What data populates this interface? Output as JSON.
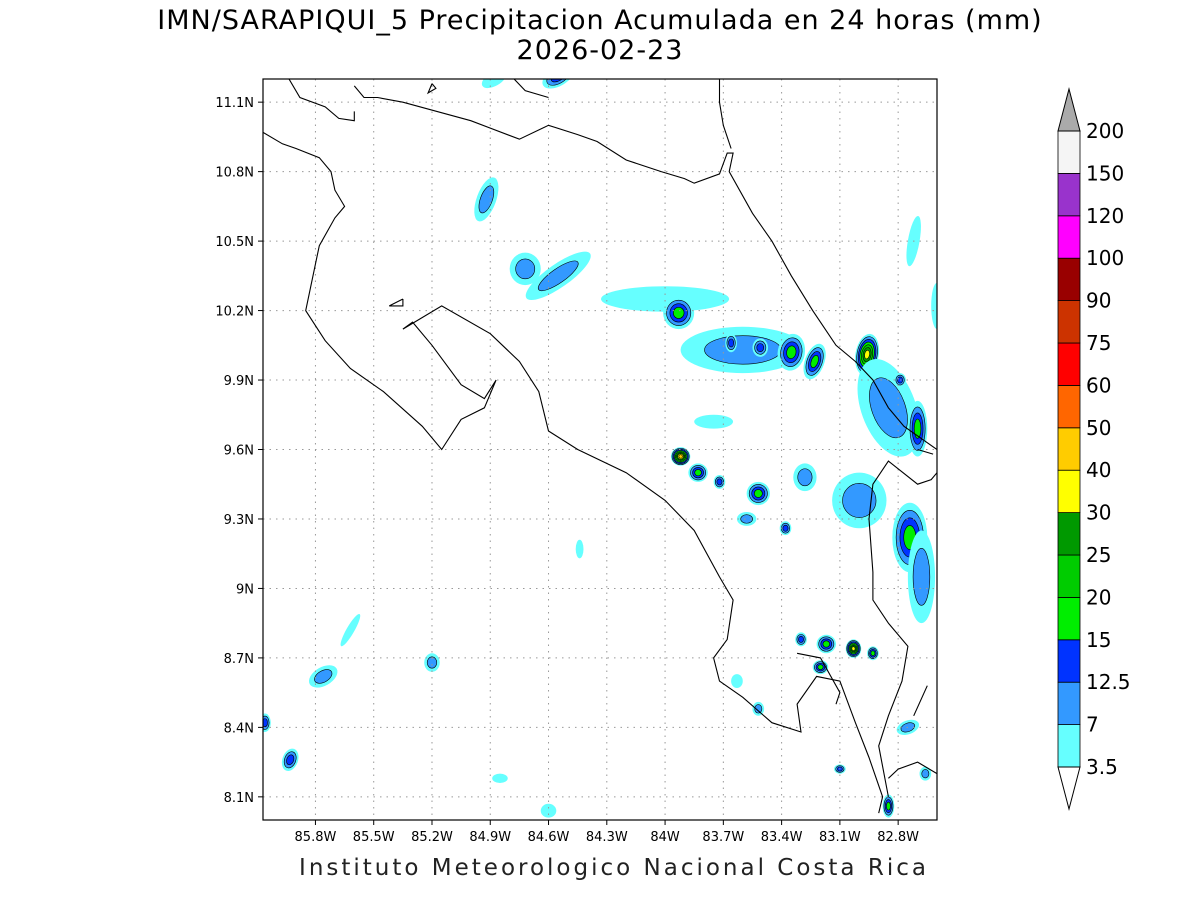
{
  "title": {
    "line1": "IMN/SARAPIQUI_5 Precipitacion Acumulada en 24 horas (mm)",
    "line2": "2026-02-23"
  },
  "footer": "Instituto Meteorologico Nacional Costa Rica",
  "map": {
    "lon_labels": [
      "85.8W",
      "85.5W",
      "85.2W",
      "84.9W",
      "84.6W",
      "84.3W",
      "84W",
      "83.7W",
      "83.4W",
      "83.1W",
      "82.8W"
    ],
    "lat_labels": [
      "11.1N",
      "10.8N",
      "10.5N",
      "10.2N",
      "9.9N",
      "9.6N",
      "9.3N",
      "9N",
      "8.7N",
      "8.4N",
      "8.1N"
    ],
    "lon_range": [
      -86.07,
      -82.6
    ],
    "lat_range": [
      8.0,
      11.2
    ],
    "grid": true,
    "coastline_color": "#000000"
  },
  "colorbar": {
    "levels": [
      "3.5",
      "7",
      "12.5",
      "15",
      "20",
      "25",
      "30",
      "40",
      "50",
      "60",
      "75",
      "90",
      "100",
      "120",
      "150",
      "200"
    ],
    "colors": [
      "#66ffff",
      "#3399ff",
      "#0033ff",
      "#00ee00",
      "#00cc00",
      "#009900",
      "#ffff00",
      "#ffcc00",
      "#ff6600",
      "#ff0000",
      "#cc3300",
      "#990000",
      "#ff00ff",
      "#9933cc",
      "#f5f5f5"
    ],
    "top_arrow_color": "#aaaaaa",
    "bottom_arrow_color": "#ffffff"
  },
  "precip_cells": [
    {
      "lon": -84.55,
      "lat": 11.21,
      "rx": 0.09,
      "ry": 0.04,
      "level": 2,
      "rot": -30
    },
    {
      "lon": -84.88,
      "lat": 11.2,
      "rx": 0.07,
      "ry": 0.03,
      "level": 0,
      "rot": -30
    },
    {
      "lon": -84.0,
      "lat": 10.25,
      "rx": 0.33,
      "ry": 0.055,
      "level": 0,
      "rot": 0
    },
    {
      "lon": -84.55,
      "lat": 10.35,
      "rx": 0.2,
      "ry": 0.05,
      "level": 1,
      "rot": -35
    },
    {
      "lon": -84.72,
      "lat": 10.38,
      "rx": 0.08,
      "ry": 0.07,
      "level": 1,
      "rot": 0
    },
    {
      "lon": -84.92,
      "lat": 10.68,
      "rx": 0.05,
      "ry": 0.1,
      "level": 1,
      "rot": 20
    },
    {
      "lon": -82.72,
      "lat": 10.5,
      "rx": 0.03,
      "ry": 0.11,
      "level": 0,
      "rot": 10
    },
    {
      "lon": -83.93,
      "lat": 10.19,
      "rx": 0.08,
      "ry": 0.07,
      "level": 3,
      "rot": 0
    },
    {
      "lon": -83.6,
      "lat": 10.03,
      "rx": 0.32,
      "ry": 0.1,
      "level": 1,
      "rot": 0
    },
    {
      "lon": -83.35,
      "lat": 10.02,
      "rx": 0.07,
      "ry": 0.08,
      "level": 3,
      "rot": 10
    },
    {
      "lon": -83.23,
      "lat": 9.98,
      "rx": 0.05,
      "ry": 0.08,
      "level": 3,
      "rot": 20
    },
    {
      "lon": -83.51,
      "lat": 10.04,
      "rx": 0.04,
      "ry": 0.04,
      "level": 2,
      "rot": 0
    },
    {
      "lon": -83.66,
      "lat": 10.06,
      "rx": 0.03,
      "ry": 0.04,
      "level": 2,
      "rot": 0
    },
    {
      "lon": -82.96,
      "lat": 10.01,
      "rx": 0.06,
      "ry": 0.09,
      "level": 6,
      "rot": 10
    },
    {
      "lon": -82.85,
      "lat": 9.78,
      "rx": 0.14,
      "ry": 0.22,
      "level": 1,
      "rot": -20
    },
    {
      "lon": -82.7,
      "lat": 9.69,
      "rx": 0.05,
      "ry": 0.12,
      "level": 3,
      "rot": 0
    },
    {
      "lon": -82.79,
      "lat": 9.9,
      "rx": 0.03,
      "ry": 0.03,
      "level": 2,
      "rot": 0
    },
    {
      "lon": -83.92,
      "lat": 9.57,
      "rx": 0.05,
      "ry": 0.04,
      "level": 7,
      "rot": 0
    },
    {
      "lon": -83.83,
      "lat": 9.5,
      "rx": 0.05,
      "ry": 0.04,
      "level": 3,
      "rot": 0
    },
    {
      "lon": -83.72,
      "lat": 9.46,
      "rx": 0.03,
      "ry": 0.03,
      "level": 2,
      "rot": 0
    },
    {
      "lon": -83.52,
      "lat": 9.41,
      "rx": 0.06,
      "ry": 0.05,
      "level": 3,
      "rot": 0
    },
    {
      "lon": -83.58,
      "lat": 9.3,
      "rx": 0.05,
      "ry": 0.03,
      "level": 1,
      "rot": 0
    },
    {
      "lon": -83.38,
      "lat": 9.26,
      "rx": 0.03,
      "ry": 0.03,
      "level": 2,
      "rot": 0
    },
    {
      "lon": -83.0,
      "lat": 9.38,
      "rx": 0.14,
      "ry": 0.12,
      "level": 1,
      "rot": 0
    },
    {
      "lon": -82.74,
      "lat": 9.22,
      "rx": 0.09,
      "ry": 0.15,
      "level": 3,
      "rot": 0
    },
    {
      "lon": -82.68,
      "lat": 9.05,
      "rx": 0.07,
      "ry": 0.2,
      "level": 1,
      "rot": 0
    },
    {
      "lon": -83.28,
      "lat": 9.48,
      "rx": 0.06,
      "ry": 0.06,
      "level": 1,
      "rot": 0
    },
    {
      "lon": -83.17,
      "lat": 8.76,
      "rx": 0.05,
      "ry": 0.04,
      "level": 3,
      "rot": 0
    },
    {
      "lon": -83.03,
      "lat": 8.74,
      "rx": 0.04,
      "ry": 0.04,
      "level": 6,
      "rot": 0
    },
    {
      "lon": -82.93,
      "lat": 8.72,
      "rx": 0.03,
      "ry": 0.03,
      "level": 3,
      "rot": 0
    },
    {
      "lon": -83.3,
      "lat": 8.78,
      "rx": 0.03,
      "ry": 0.03,
      "level": 2,
      "rot": 0
    },
    {
      "lon": -83.2,
      "lat": 8.66,
      "rx": 0.04,
      "ry": 0.03,
      "level": 3,
      "rot": 0
    },
    {
      "lon": -82.85,
      "lat": 8.06,
      "rx": 0.03,
      "ry": 0.05,
      "level": 3,
      "rot": 0
    },
    {
      "lon": -83.1,
      "lat": 8.22,
      "rx": 0.03,
      "ry": 0.02,
      "level": 2,
      "rot": 0
    },
    {
      "lon": -82.75,
      "lat": 8.4,
      "rx": 0.06,
      "ry": 0.03,
      "level": 1,
      "rot": -20
    },
    {
      "lon": -82.66,
      "lat": 8.2,
      "rx": 0.03,
      "ry": 0.03,
      "level": 1,
      "rot": 0
    },
    {
      "lon": -83.52,
      "lat": 8.48,
      "rx": 0.03,
      "ry": 0.03,
      "level": 1,
      "rot": 0
    },
    {
      "lon": -83.63,
      "lat": 8.6,
      "rx": 0.03,
      "ry": 0.03,
      "level": 0,
      "rot": 0
    },
    {
      "lon": -85.76,
      "lat": 8.62,
      "rx": 0.08,
      "ry": 0.04,
      "level": 1,
      "rot": -30
    },
    {
      "lon": -85.2,
      "lat": 8.68,
      "rx": 0.04,
      "ry": 0.04,
      "level": 1,
      "rot": 0
    },
    {
      "lon": -86.06,
      "lat": 8.42,
      "rx": 0.03,
      "ry": 0.04,
      "level": 2,
      "rot": 0
    },
    {
      "lon": -85.93,
      "lat": 8.26,
      "rx": 0.04,
      "ry": 0.05,
      "level": 2,
      "rot": 20
    },
    {
      "lon": -85.62,
      "lat": 8.82,
      "rx": 0.02,
      "ry": 0.08,
      "level": 0,
      "rot": 30
    },
    {
      "lon": -84.6,
      "lat": 8.04,
      "rx": 0.04,
      "ry": 0.03,
      "level": 0,
      "rot": 0
    },
    {
      "lon": -84.85,
      "lat": 8.18,
      "rx": 0.04,
      "ry": 0.02,
      "level": 0,
      "rot": 0
    },
    {
      "lon": -84.44,
      "lat": 9.17,
      "rx": 0.02,
      "ry": 0.04,
      "level": 0,
      "rot": 0
    },
    {
      "lon": -83.75,
      "lat": 9.72,
      "rx": 0.1,
      "ry": 0.03,
      "level": 0,
      "rot": 0
    },
    {
      "lon": -82.6,
      "lat": 10.22,
      "rx": 0.03,
      "ry": 0.1,
      "level": 0,
      "rot": 0
    }
  ]
}
